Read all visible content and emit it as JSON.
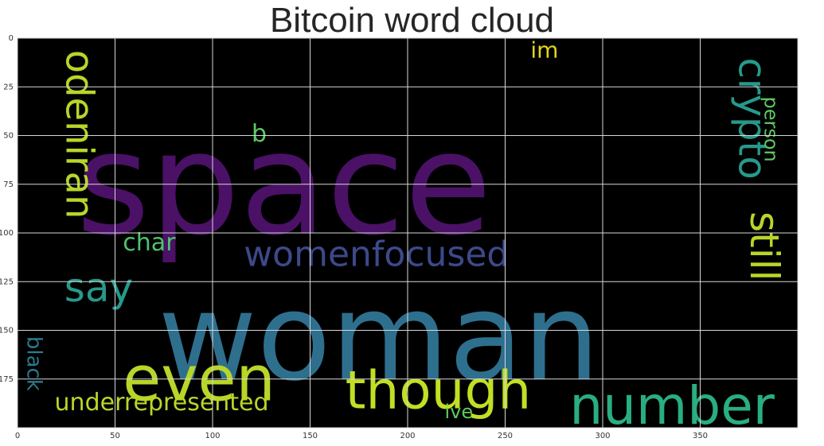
{
  "title": "Bitcoin word cloud",
  "axes": {
    "x_ticks": [
      0,
      50,
      100,
      150,
      200,
      250,
      300,
      350
    ],
    "y_ticks": [
      0,
      25,
      50,
      75,
      100,
      125,
      150,
      175
    ],
    "xlim": [
      0,
      400
    ],
    "ylim": [
      0,
      200
    ],
    "grid": true,
    "background": "#000000",
    "grid_color": "#d8d8d8"
  },
  "words": [
    {
      "text": "space",
      "color": "#4a1166",
      "x": 30,
      "y": 100,
      "size": 178,
      "angle": 0
    },
    {
      "text": "woman",
      "color": "#2e6f8e",
      "x": 72,
      "y": 175,
      "size": 152,
      "angle": 0
    },
    {
      "text": "womenfocused",
      "color": "#3c4a8a",
      "x": 116,
      "y": 117,
      "size": 44,
      "angle": 0
    },
    {
      "text": "even",
      "color": "#b8d629",
      "x": 54,
      "y": 186,
      "size": 78,
      "angle": 0
    },
    {
      "text": "though",
      "color": "#c2df23",
      "x": 168,
      "y": 190,
      "size": 66,
      "angle": 0
    },
    {
      "text": "number",
      "color": "#29ae80",
      "x": 283,
      "y": 198,
      "size": 66,
      "angle": 0
    },
    {
      "text": "odeniran",
      "color": "#b8d629",
      "x": 25,
      "y": 6,
      "size": 48,
      "angle": 90
    },
    {
      "text": "crypto",
      "color": "#27998b",
      "x": 370,
      "y": 10,
      "size": 48,
      "angle": 90
    },
    {
      "text": "still",
      "color": "#b8d629",
      "x": 376,
      "y": 89,
      "size": 50,
      "angle": 90
    },
    {
      "text": "person",
      "color": "#5ec962",
      "x": 383,
      "y": 30,
      "size": 24,
      "angle": 90
    },
    {
      "text": "say",
      "color": "#27998b",
      "x": 24,
      "y": 135,
      "size": 50,
      "angle": 0
    },
    {
      "text": "char",
      "color": "#4ec36b",
      "x": 54,
      "y": 109,
      "size": 30,
      "angle": 0
    },
    {
      "text": "b",
      "color": "#5ec962",
      "x": 120,
      "y": 53,
      "size": 30,
      "angle": 0
    },
    {
      "text": "im",
      "color": "#e2d719",
      "x": 263,
      "y": 10,
      "size": 28,
      "angle": 0
    },
    {
      "text": "black",
      "color": "#2b7b8e",
      "x": 5,
      "y": 153,
      "size": 26,
      "angle": 90
    },
    {
      "text": "underrepresented",
      "color": "#b8d629",
      "x": 19,
      "y": 191,
      "size": 30,
      "angle": 0
    },
    {
      "text": "ive",
      "color": "#5ec962",
      "x": 219,
      "y": 195,
      "size": 24,
      "angle": 0
    }
  ]
}
